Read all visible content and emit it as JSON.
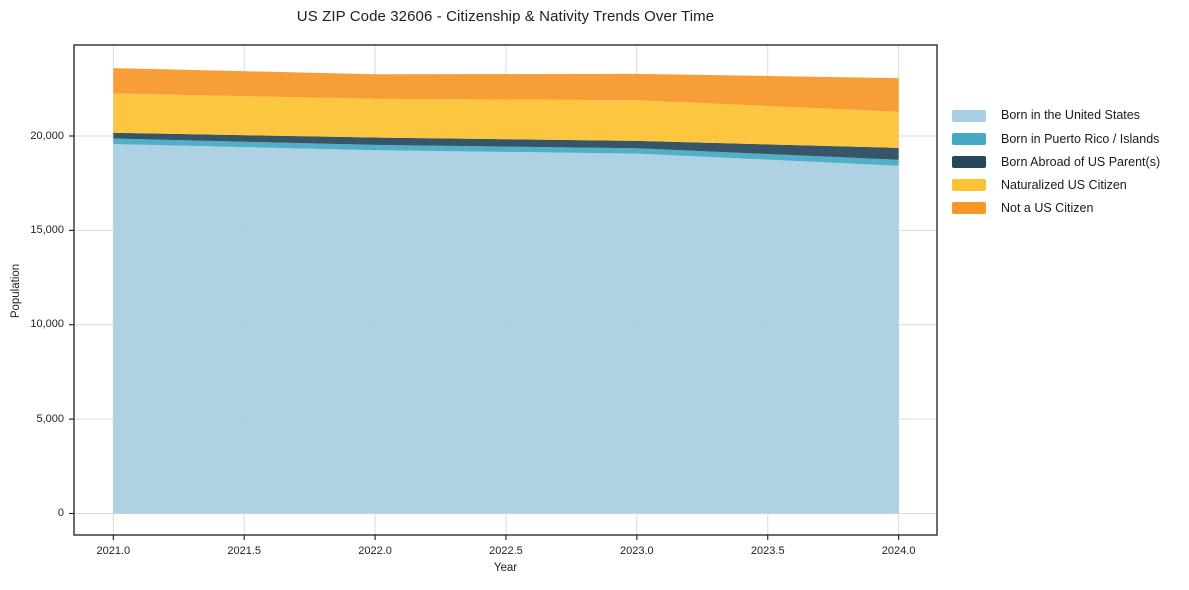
{
  "title": "US ZIP Code 32606 - Citizenship & Nativity Trends Over Time",
  "axes": {
    "xlabel": "Year",
    "ylabel": "Population",
    "x_tick_values": [
      2021.0,
      2021.5,
      2022.0,
      2022.5,
      2023.0,
      2023.5,
      2024.0
    ],
    "x_tick_labels": [
      "2021.0",
      "2021.5",
      "2022.0",
      "2022.5",
      "2023.0",
      "2023.5",
      "2024.0"
    ],
    "y_tick_values": [
      0,
      5000,
      10000,
      15000,
      20000
    ],
    "y_tick_labels": [
      "0",
      "5,000",
      "10,000",
      "15,000",
      "20,000"
    ]
  },
  "legend": {
    "position": "right-outside",
    "items": [
      {
        "label": "Born in the United States",
        "color": "#A8CEE2"
      },
      {
        "label": "Born in Puerto Rico / Islands",
        "color": "#45A9C4"
      },
      {
        "label": "Born Abroad of US Parent(s)",
        "color": "#27485A"
      },
      {
        "label": "Naturalized US Citizen",
        "color": "#FCC233"
      },
      {
        "label": "Not a US Citizen",
        "color": "#F79727"
      }
    ]
  },
  "chart_data": {
    "type": "area",
    "stacked": true,
    "title": "US ZIP Code 32606 - Citizenship & Nativity Trends Over Time",
    "xlabel": "Year",
    "ylabel": "Population",
    "x": [
      2021,
      2022,
      2023,
      2024
    ],
    "series": [
      {
        "name": "Born in the United States",
        "color": "#A8CEE2",
        "values": [
          19570,
          19250,
          19070,
          18420
        ]
      },
      {
        "name": "Born in Puerto Rico / Islands",
        "color": "#45A9C4",
        "values": [
          300,
          280,
          280,
          320
        ]
      },
      {
        "name": "Born Abroad of US Parent(s)",
        "color": "#27485A",
        "values": [
          300,
          390,
          390,
          630
        ]
      },
      {
        "name": "Naturalized US Citizen",
        "color": "#FCC233",
        "values": [
          2080,
          2050,
          2150,
          1920
        ]
      },
      {
        "name": "Not a US Citizen",
        "color": "#F79727",
        "values": [
          1350,
          1300,
          1400,
          1780
        ]
      }
    ],
    "stacked_totals": [
      23600,
      23270,
      23290,
      23070
    ],
    "xlim": [
      2020.85,
      2024.15
    ],
    "ylim": [
      -1100,
      24800
    ],
    "x_ticks": [
      2021.0,
      2021.5,
      2022.0,
      2022.5,
      2023.0,
      2023.5,
      2024.0
    ],
    "y_ticks": [
      0,
      5000,
      10000,
      15000,
      20000
    ],
    "grid": true,
    "legend_position": "right-outside"
  }
}
